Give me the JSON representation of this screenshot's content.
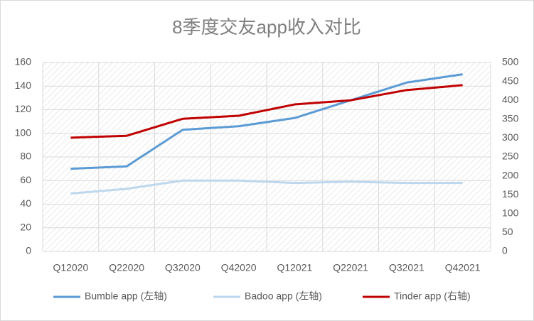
{
  "chart_data": {
    "type": "line",
    "title": "8季度交友app收入对比",
    "categories": [
      "Q12020",
      "Q22020",
      "Q32020",
      "Q42020",
      "Q12021",
      "Q22021",
      "Q32021",
      "Q42021"
    ],
    "series": [
      {
        "name": "Bumble app (左轴)",
        "color": "#5b9bd5",
        "values": [
          70,
          72,
          103,
          106,
          113,
          128,
          143,
          150
        ]
      },
      {
        "name": "Badoo app (左轴)",
        "color": "#bdd7ee",
        "values": [
          49,
          53,
          60,
          60,
          58,
          59,
          58,
          58
        ]
      },
      {
        "name": "Tinder app (右轴)",
        "color": "#c00000",
        "axis": "y2",
        "values": [
          301,
          306,
          351,
          359,
          389,
          400,
          427,
          440
        ]
      }
    ],
    "ylim": [
      0,
      160
    ],
    "yticks": [
      0,
      20,
      40,
      60,
      80,
      100,
      120,
      140,
      160
    ],
    "y2lim": [
      0,
      500
    ],
    "y2ticks": [
      0,
      50,
      100,
      150,
      200,
      250,
      300,
      350,
      400,
      450,
      500
    ],
    "grid": true,
    "legend": "bottom"
  }
}
